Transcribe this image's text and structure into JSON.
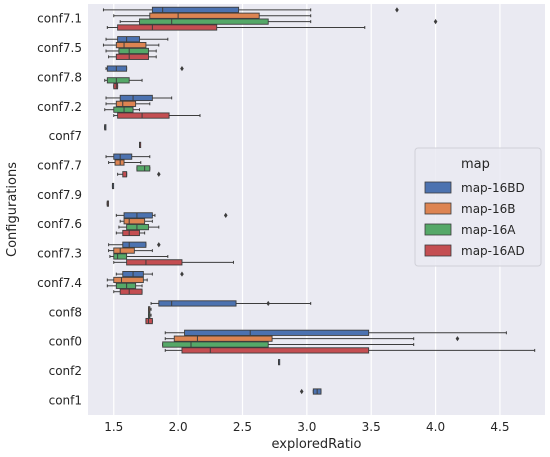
{
  "chart_data": {
    "type": "box",
    "orientation": "horizontal",
    "title": "",
    "xlabel": "exploredRatio",
    "ylabel": "Configurations",
    "xlim": [
      1.3,
      4.85
    ],
    "xticks": [
      1.5,
      2.0,
      2.5,
      3.0,
      3.5,
      4.0,
      4.5
    ],
    "xtick_labels": [
      "1.5",
      "2.0",
      "2.5",
      "3.0",
      "3.5",
      "4.0",
      "4.5"
    ],
    "categories": [
      "conf7.1",
      "conf7.5",
      "conf7.8",
      "conf7.2",
      "conf7",
      "conf7.7",
      "conf7.9",
      "conf7.6",
      "conf7.3",
      "conf7.4",
      "conf8",
      "conf0",
      "conf2",
      "conf1"
    ],
    "grid": true,
    "background": "#eaeaf2",
    "legend": {
      "title": "map",
      "position": "center-right",
      "entries": [
        "map-16BD",
        "map-16B",
        "map-16A",
        "map-16AD"
      ]
    },
    "series": [
      {
        "name": "map-16BD",
        "color": "#4c72b0",
        "boxes": [
          {
            "whisker_low": 1.42,
            "q1": 1.8,
            "median": 1.88,
            "q3": 2.47,
            "whisker_high": 3.03,
            "outliers": [
              3.7
            ]
          },
          {
            "whisker_low": 1.44,
            "q1": 1.53,
            "median": 1.6,
            "q3": 1.7,
            "whisker_high": 1.92,
            "outliers": []
          },
          {
            "whisker_low": 1.44,
            "q1": 1.45,
            "median": 1.52,
            "q3": 1.6,
            "whisker_high": 1.6,
            "outliers": [
              2.03
            ]
          },
          {
            "whisker_low": 1.44,
            "q1": 1.55,
            "median": 1.65,
            "q3": 1.8,
            "whisker_high": 1.95,
            "outliers": []
          },
          {
            "whisker_low": 1.43,
            "q1": 1.43,
            "median": 1.43,
            "q3": 1.43,
            "whisker_high": 1.43,
            "outliers": []
          },
          {
            "whisker_low": 1.44,
            "q1": 1.5,
            "median": 1.55,
            "q3": 1.64,
            "whisker_high": 1.78,
            "outliers": []
          },
          {
            "whisker_low": 1.49,
            "q1": 1.49,
            "median": 1.49,
            "q3": 1.49,
            "whisker_high": 1.49,
            "outliers": []
          },
          {
            "whisker_low": 1.52,
            "q1": 1.58,
            "median": 1.68,
            "q3": 1.8,
            "whisker_high": 1.82,
            "outliers": [
              2.37
            ]
          },
          {
            "whisker_low": 1.46,
            "q1": 1.57,
            "median": 1.62,
            "q3": 1.75,
            "whisker_high": 1.75,
            "outliers": [
              1.85
            ]
          },
          {
            "whisker_low": 1.52,
            "q1": 1.57,
            "median": 1.65,
            "q3": 1.73,
            "whisker_high": 1.8,
            "outliers": [
              2.03
            ]
          },
          {
            "whisker_low": 1.79,
            "q1": 1.85,
            "median": 1.95,
            "q3": 2.45,
            "whisker_high": 3.03,
            "outliers": [
              2.7
            ]
          },
          {
            "whisker_low": 1.9,
            "q1": 2.05,
            "median": 2.56,
            "q3": 3.48,
            "whisker_high": 4.55,
            "outliers": []
          },
          {
            "whisker_low": 2.78,
            "q1": 2.78,
            "median": 2.78,
            "q3": 2.78,
            "whisker_high": 2.78,
            "outliers": []
          },
          {
            "whisker_low": 3.05,
            "q1": 3.05,
            "median": 3.08,
            "q3": 3.11,
            "whisker_high": 3.11,
            "outliers": [
              2.96
            ]
          }
        ]
      },
      {
        "name": "map-16B",
        "color": "#dd8452",
        "boxes": [
          {
            "whisker_low": 1.5,
            "q1": 1.78,
            "median": 2.0,
            "q3": 2.63,
            "whisker_high": 3.03,
            "outliers": []
          },
          {
            "whisker_low": 1.42,
            "q1": 1.52,
            "median": 1.58,
            "q3": 1.75,
            "whisker_high": 1.85,
            "outliers": []
          },
          null,
          {
            "whisker_low": 1.44,
            "q1": 1.52,
            "median": 1.57,
            "q3": 1.67,
            "whisker_high": 1.78,
            "outliers": []
          },
          null,
          {
            "whisker_low": 1.46,
            "q1": 1.51,
            "median": 1.55,
            "q3": 1.58,
            "whisker_high": 1.71,
            "outliers": []
          },
          null,
          {
            "whisker_low": 1.55,
            "q1": 1.58,
            "median": 1.62,
            "q3": 1.74,
            "whisker_high": 1.8,
            "outliers": []
          },
          {
            "whisker_low": 1.46,
            "q1": 1.5,
            "median": 1.55,
            "q3": 1.66,
            "whisker_high": 1.8,
            "outliers": []
          },
          {
            "whisker_low": 1.45,
            "q1": 1.5,
            "median": 1.56,
            "q3": 1.73,
            "whisker_high": 1.76,
            "outliers": []
          },
          {
            "whisker_low": 1.77,
            "q1": 1.77,
            "median": 1.78,
            "q3": 1.78,
            "whisker_high": 1.79,
            "outliers": []
          },
          {
            "whisker_low": 1.9,
            "q1": 1.97,
            "median": 2.15,
            "q3": 2.73,
            "whisker_high": 3.83,
            "outliers": [
              4.17
            ]
          },
          null,
          null
        ]
      },
      {
        "name": "map-16A",
        "color": "#55a868",
        "boxes": [
          {
            "whisker_low": 1.55,
            "q1": 1.7,
            "median": 1.95,
            "q3": 2.7,
            "whisker_high": 3.03,
            "outliers": [
              4.0
            ]
          },
          {
            "whisker_low": 1.44,
            "q1": 1.54,
            "median": 1.62,
            "q3": 1.77,
            "whisker_high": 1.83,
            "outliers": []
          },
          {
            "whisker_low": 1.43,
            "q1": 1.45,
            "median": 1.52,
            "q3": 1.62,
            "whisker_high": 1.72,
            "outliers": []
          },
          {
            "whisker_low": 1.43,
            "q1": 1.5,
            "median": 1.58,
            "q3": 1.65,
            "whisker_high": 1.7,
            "outliers": []
          },
          null,
          {
            "whisker_low": 1.68,
            "q1": 1.68,
            "median": 1.74,
            "q3": 1.78,
            "whisker_high": 1.78,
            "outliers": []
          },
          null,
          {
            "whisker_low": 1.54,
            "q1": 1.6,
            "median": 1.68,
            "q3": 1.77,
            "whisker_high": 1.85,
            "outliers": []
          },
          {
            "whisker_low": 1.47,
            "q1": 1.5,
            "median": 1.53,
            "q3": 1.6,
            "whisker_high": 1.92,
            "outliers": []
          },
          {
            "whisker_low": 1.45,
            "q1": 1.52,
            "median": 1.6,
            "q3": 1.67,
            "whisker_high": 1.72,
            "outliers": []
          },
          {
            "whisker_low": 1.77,
            "q1": 1.77,
            "median": 1.78,
            "q3": 1.78,
            "whisker_high": 1.79,
            "outliers": []
          },
          {
            "whisker_low": 1.88,
            "q1": 1.88,
            "median": 2.1,
            "q3": 2.7,
            "whisker_high": 3.83,
            "outliers": []
          },
          null,
          null
        ]
      },
      {
        "name": "map-16AD",
        "color": "#c44e52",
        "boxes": [
          {
            "whisker_low": 1.45,
            "q1": 1.53,
            "median": 1.8,
            "q3": 2.3,
            "whisker_high": 3.45,
            "outliers": []
          },
          {
            "whisker_low": 1.46,
            "q1": 1.52,
            "median": 1.62,
            "q3": 1.77,
            "whisker_high": 1.83,
            "outliers": []
          },
          {
            "whisker_low": 1.5,
            "q1": 1.5,
            "median": 1.52,
            "q3": 1.53,
            "whisker_high": 1.53,
            "outliers": []
          },
          {
            "whisker_low": 1.5,
            "q1": 1.53,
            "median": 1.72,
            "q3": 1.93,
            "whisker_high": 2.17,
            "outliers": []
          },
          {
            "whisker_low": 1.7,
            "q1": 1.7,
            "median": 1.7,
            "q3": 1.7,
            "whisker_high": 1.7,
            "outliers": []
          },
          {
            "whisker_low": 1.53,
            "q1": 1.57,
            "median": 1.6,
            "q3": 1.6,
            "whisker_high": 1.6,
            "outliers": [
              1.85
            ]
          },
          {
            "whisker_low": 1.45,
            "q1": 1.45,
            "median": 1.45,
            "q3": 1.45,
            "whisker_high": 1.45,
            "outliers": []
          },
          {
            "whisker_low": 1.52,
            "q1": 1.57,
            "median": 1.62,
            "q3": 1.7,
            "whisker_high": 1.74,
            "outliers": []
          },
          {
            "whisker_low": 1.5,
            "q1": 1.6,
            "median": 1.75,
            "q3": 2.03,
            "whisker_high": 2.43,
            "outliers": []
          },
          {
            "whisker_low": 1.5,
            "q1": 1.55,
            "median": 1.62,
            "q3": 1.72,
            "whisker_high": 1.72,
            "outliers": []
          },
          {
            "whisker_low": 1.75,
            "q1": 1.75,
            "median": 1.77,
            "q3": 1.8,
            "whisker_high": 1.8,
            "outliers": []
          },
          {
            "whisker_low": 1.9,
            "q1": 2.03,
            "median": 2.25,
            "q3": 3.48,
            "whisker_high": 4.77,
            "outliers": []
          },
          null,
          null
        ]
      }
    ]
  }
}
